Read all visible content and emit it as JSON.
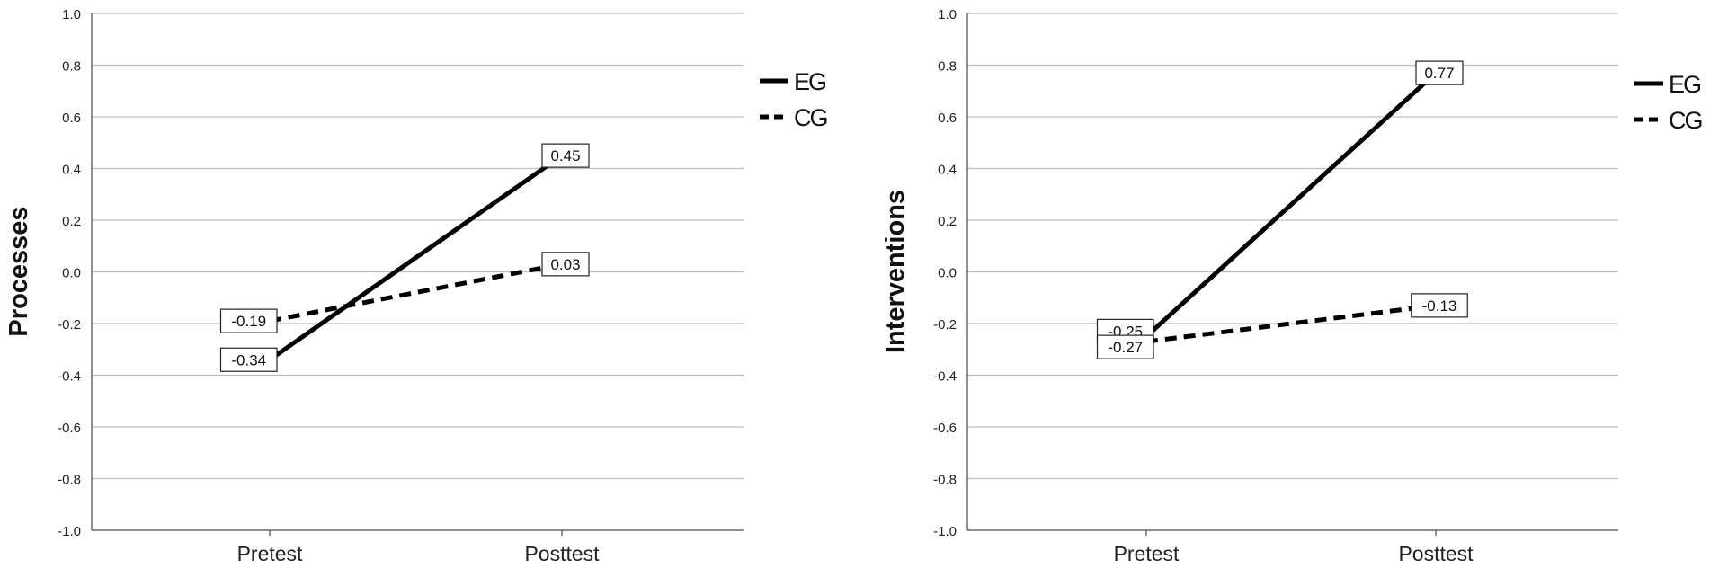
{
  "chart_data": [
    {
      "type": "line",
      "categories": [
        "Pretest",
        "Posttest"
      ],
      "ylabel": "Processes",
      "ylim": [
        -1.0,
        1.0
      ],
      "yticks": [
        "1.0",
        "0.8",
        "0.6",
        "0.4",
        "0.2",
        "0.0",
        "-0.2",
        "-0.4",
        "-0.6",
        "-0.8",
        "-1.0"
      ],
      "grid": true,
      "legend_position": "top-right",
      "series": [
        {
          "name": "EG",
          "values": [
            -0.34,
            0.45
          ],
          "labels": [
            "-0.34",
            "0.45"
          ],
          "style": "solid",
          "color": "#000000"
        },
        {
          "name": "CG",
          "values": [
            -0.19,
            0.03
          ],
          "labels": [
            "-0.19",
            "0.03"
          ],
          "style": "dashed",
          "color": "#000000"
        }
      ]
    },
    {
      "type": "line",
      "categories": [
        "Pretest",
        "Posttest"
      ],
      "ylabel": "Interventions",
      "ylim": [
        -1.0,
        1.0
      ],
      "yticks": [
        "1.0",
        "0.8",
        "0.6",
        "0.4",
        "0.2",
        "0.0",
        "-0.2",
        "-0.4",
        "-0.6",
        "-0.8",
        "-1.0"
      ],
      "grid": true,
      "legend_position": "top-right",
      "series": [
        {
          "name": "EG",
          "values": [
            -0.25,
            0.77
          ],
          "labels": [
            "-0.25",
            "0.77"
          ],
          "style": "solid",
          "color": "#000000"
        },
        {
          "name": "CG",
          "values": [
            -0.27,
            -0.13
          ],
          "labels": [
            "-0.27",
            "-0.13"
          ],
          "style": "dashed",
          "color": "#000000"
        }
      ]
    }
  ]
}
